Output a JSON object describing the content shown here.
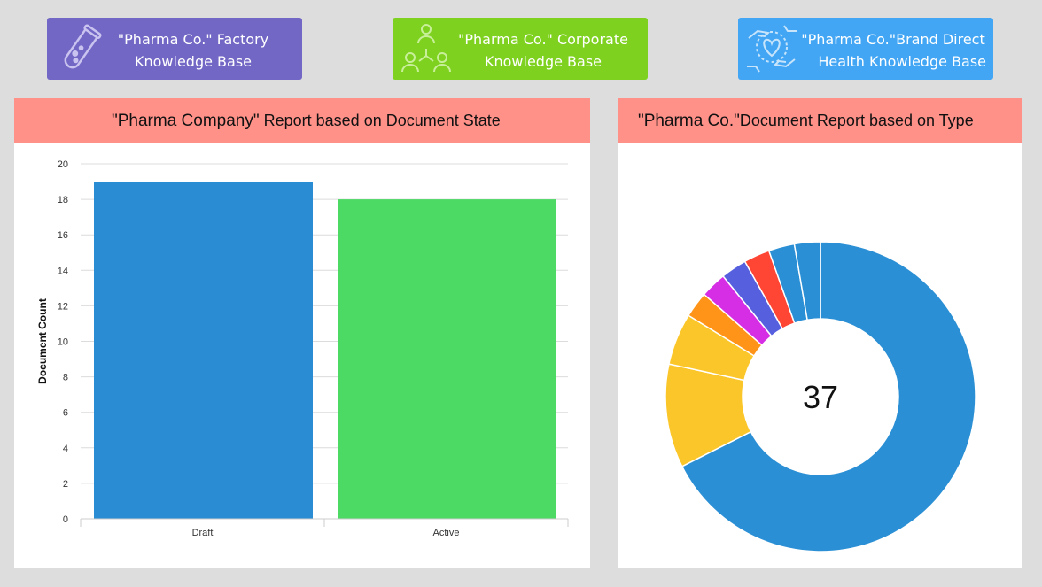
{
  "buttons": {
    "factory": {
      "line1": "\"Pharma Co.\" Factory",
      "line2": "Knowledge Base",
      "color": "#7267c5",
      "icon": "test-tube-icon"
    },
    "corporate": {
      "line1": "\"Pharma Co.\" Corporate",
      "line2": "Knowledge Base",
      "color": "#7fd11f",
      "icon": "team-network-icon"
    },
    "brand": {
      "line1": "\"Pharma Co.\"Brand Direct",
      "line2": "Health Knowledge Base",
      "color": "#42a6f4",
      "icon": "hands-heart-icon"
    }
  },
  "state_card": {
    "title_quoted": "\"Pharma Company\"",
    "title_rest": " Report based on Document State"
  },
  "type_card": {
    "title_quoted": "\"Pharma Co.\"",
    "title_rest": "Document Report based on Type"
  },
  "chart_data": [
    {
      "type": "bar",
      "title": "\"Pharma Company\" Report based on Document State",
      "categories": [
        "Draft",
        "Active"
      ],
      "values": [
        19,
        18
      ],
      "colors": [
        "#2a8dd4",
        "#4cd964"
      ],
      "ylabel": "Document Count",
      "xlabel": "",
      "ylim": [
        0,
        20
      ],
      "yticks": [
        "0",
        "2",
        "4",
        "6",
        "8",
        "10",
        "12",
        "14",
        "16",
        "18",
        "20"
      ],
      "grid": true
    },
    {
      "type": "pie",
      "donut": true,
      "title": "\"Pharma Co.\"Document Report based on Type",
      "center_label": "37",
      "values": [
        25,
        4,
        2,
        1,
        1,
        1,
        1,
        1,
        1
      ],
      "colors": [
        "#2a8fd4",
        "#fbc62a",
        "#fbc62a",
        "#ff9418",
        "#d62ee5",
        "#5660de",
        "#ff4534",
        "#2a8fd4",
        "#2a8fd4"
      ]
    }
  ]
}
